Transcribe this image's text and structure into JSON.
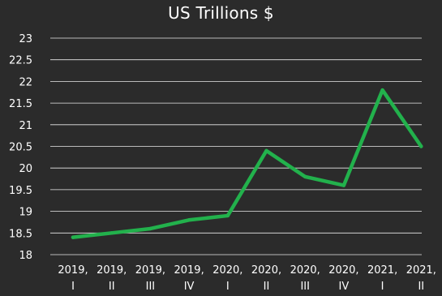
{
  "chart_data": {
    "type": "line",
    "title": "US Trillions $",
    "xlabel": "",
    "ylabel": "",
    "categories": [
      [
        "2019,",
        "I"
      ],
      [
        "2019,",
        "II"
      ],
      [
        "2019,",
        "III"
      ],
      [
        "2019,",
        "IV"
      ],
      [
        "2020,",
        "I"
      ],
      [
        "2020,",
        "II"
      ],
      [
        "2020,",
        "III"
      ],
      [
        "2020,",
        "IV"
      ],
      [
        "2021,",
        "I"
      ],
      [
        "2021,",
        "II"
      ]
    ],
    "values": [
      18.4,
      18.5,
      18.6,
      18.8,
      18.9,
      20.4,
      19.8,
      19.6,
      21.8,
      20.5
    ],
    "ylim": [
      18,
      23
    ],
    "yticks": [
      "18",
      "18.5",
      "19",
      "19.5",
      "20",
      "20.5",
      "21",
      "21.5",
      "22",
      "22.5",
      "23"
    ],
    "grid": true,
    "colors": {
      "background": "#2b2b2b",
      "line": "#22b14c",
      "grid": "#ffffff",
      "text": "#ffffff"
    }
  }
}
